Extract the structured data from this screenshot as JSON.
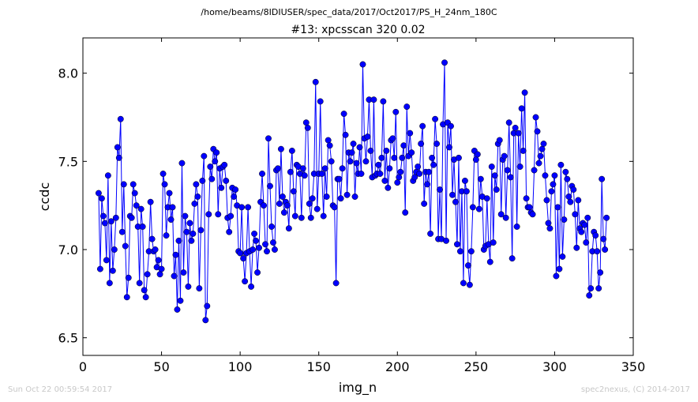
{
  "figure": {
    "path_title": "/home/beams/8IDIUSER/spec_data/2017/Oct2017/PS_H_24nm_180C",
    "footer_left": "Sun Oct 22 00:59:54 2017",
    "footer_right": "spec2nexus, (C) 2014-2017"
  },
  "colors": {
    "series": "#0000ff",
    "marker": "#0000ff",
    "footer_text": "#c8c8c8"
  },
  "chart_data": {
    "type": "line",
    "title": "#13: xpcsscan 320 0.02",
    "xlabel": "img_n",
    "ylabel": "ccdc",
    "xlim": [
      0,
      350
    ],
    "ylim": [
      6.4,
      8.2
    ],
    "xticks": [
      0,
      50,
      100,
      150,
      200,
      250,
      300,
      350
    ],
    "xtick_labels": [
      "0",
      "50",
      "100",
      "150",
      "200",
      "250",
      "300",
      "350"
    ],
    "yticks": [
      6.5,
      7.0,
      7.5,
      8.0
    ],
    "ytick_labels": [
      "6.5",
      "7.0",
      "7.5",
      "8.0"
    ],
    "grid": false,
    "marker": "circle",
    "series": [
      {
        "x_start": 10,
        "x_step": 1,
        "values": [
          7.32,
          6.89,
          7.29,
          7.19,
          7.15,
          6.94,
          7.42,
          6.81,
          7.16,
          6.88,
          7.0,
          7.18,
          7.58,
          7.52,
          7.74,
          7.1,
          7.37,
          7.02,
          6.73,
          6.84,
          7.19,
          7.18,
          7.37,
          7.32,
          7.25,
          7.13,
          6.81,
          7.23,
          7.13,
          6.77,
          6.73,
          6.86,
          6.99,
          7.27,
          7.06,
          6.99,
          7.0,
          6.9,
          6.94,
          6.86,
          6.89,
          7.43,
          7.37,
          7.08,
          7.24,
          7.32,
          7.17,
          7.24,
          6.85,
          6.97,
          6.66,
          7.05,
          6.71,
          7.49,
          6.87,
          7.19,
          7.1,
          6.79,
          7.15,
          7.05,
          7.09,
          7.26,
          7.37,
          7.3,
          6.78,
          7.11,
          7.39,
          7.53,
          6.6,
          6.68,
          7.2,
          7.47,
          7.4,
          7.57,
          7.5,
          7.55,
          7.2,
          7.46,
          7.35,
          7.47,
          7.48,
          7.39,
          7.18,
          7.1,
          7.19,
          7.35,
          7.3,
          7.34,
          7.25,
          6.99,
          6.98,
          7.24,
          6.95,
          6.82,
          6.98,
          7.24,
          6.99,
          6.79,
          7.0,
          7.09,
          7.05,
          6.87,
          7.01,
          7.27,
          7.43,
          7.25,
          7.03,
          6.99,
          7.63,
          7.36,
          7.13,
          7.04,
          7.0,
          7.45,
          7.46,
          7.26,
          7.57,
          7.3,
          7.21,
          7.27,
          7.25,
          7.12,
          7.44,
          7.56,
          7.33,
          7.19,
          7.48,
          7.47,
          7.43,
          7.18,
          7.46,
          7.42,
          7.72,
          7.69,
          7.26,
          7.18,
          7.29,
          7.43,
          7.95,
          7.23,
          7.43,
          7.84,
          7.43,
          7.19,
          7.46,
          7.3,
          7.62,
          7.59,
          7.5,
          7.25,
          7.24,
          6.81,
          7.4,
          7.4,
          7.29,
          7.46,
          7.77,
          7.65,
          7.31,
          7.55,
          7.5,
          7.55,
          7.6,
          7.3,
          7.49,
          7.43,
          7.58,
          7.43,
          8.05,
          7.63,
          7.5,
          7.64,
          7.85,
          7.56,
          7.41,
          7.85,
          7.42,
          7.43,
          7.48,
          7.43,
          7.52,
          7.84,
          7.39,
          7.56,
          7.35,
          7.46,
          7.62,
          7.63,
          7.52,
          7.78,
          7.38,
          7.41,
          7.44,
          7.52,
          7.59,
          7.21,
          7.81,
          7.53,
          7.66,
          7.55,
          7.39,
          7.41,
          7.44,
          7.47,
          7.43,
          7.6,
          7.7,
          7.26,
          7.44,
          7.37,
          7.44,
          7.09,
          7.52,
          7.48,
          7.74,
          7.6,
          7.06,
          7.34,
          7.06,
          7.71,
          8.06,
          7.05,
          7.72,
          7.58,
          7.7,
          7.31,
          7.51,
          7.27,
          7.03,
          7.52,
          6.99,
          7.33,
          6.81,
          7.39,
          7.33,
          6.91,
          6.8,
          6.99,
          7.24,
          7.56,
          7.51,
          7.54,
          7.23,
          7.4,
          7.3,
          7.0,
          7.02,
          7.29,
          7.03,
          6.93,
          7.47,
          7.04,
          7.42,
          7.34,
          7.6,
          7.62,
          7.2,
          7.51,
          7.53,
          7.18,
          7.45,
          7.72,
          7.41,
          6.95,
          7.66,
          7.69,
          7.13,
          7.66,
          7.47,
          7.8,
          7.56,
          7.89,
          7.29,
          7.24,
          7.24,
          7.21,
          7.2,
          7.45,
          7.75,
          7.67,
          7.49,
          7.53,
          7.57,
          7.6,
          7.42,
          7.28,
          7.15,
          7.12,
          7.33,
          7.37,
          7.42,
          6.85,
          7.24,
          6.89,
          7.48,
          6.96,
          7.17,
          7.44,
          7.4,
          7.3,
          7.27,
          7.36,
          7.34,
          7.2,
          7.01,
          7.28,
          7.12,
          7.1,
          7.15,
          7.14,
          7.04,
          7.18,
          6.74,
          6.78,
          6.99,
          7.1,
          7.08,
          6.99,
          6.78,
          6.87,
          7.4,
          7.06,
          7.0,
          7.18
        ]
      }
    ]
  }
}
